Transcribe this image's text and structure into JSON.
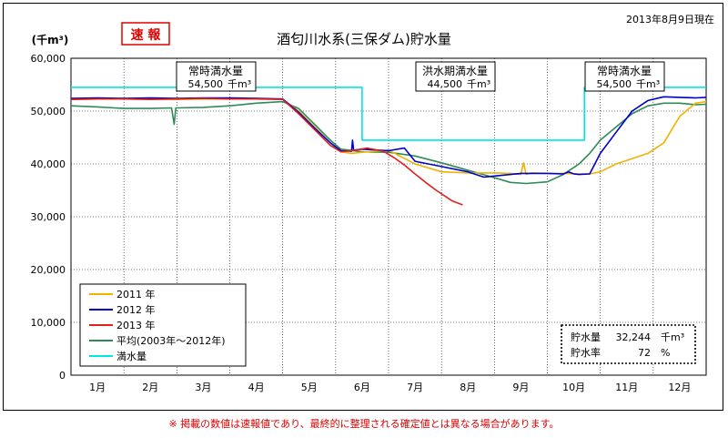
{
  "chart_data": {
    "type": "line",
    "title": "酒匂川水系(三保ダム)貯水量",
    "badge": "速 報",
    "as_of": "2013年8月9日現在",
    "y_unit": "(千m³)",
    "ylim": [
      0,
      60000
    ],
    "y_ticks": [
      "0",
      "10,000",
      "20,000",
      "30,000",
      "40,000",
      "50,000",
      "60,000"
    ],
    "y_tick_values": [
      0,
      10000,
      20000,
      30000,
      40000,
      50000,
      60000
    ],
    "xlim": [
      0,
      12
    ],
    "x_labels": [
      "1月",
      "2月",
      "3月",
      "4月",
      "5月",
      "6月",
      "7月",
      "8月",
      "9月",
      "10月",
      "11月",
      "12月"
    ],
    "grid": true,
    "series": [
      {
        "name": "2011 年",
        "color": "#f0b400",
        "x": [
          0,
          0.5,
          1,
          1.5,
          2,
          2.5,
          3,
          3.5,
          4,
          4.3,
          4.6,
          4.9,
          5.1,
          5.3,
          5.6,
          6,
          6.5,
          7,
          7.5,
          8,
          8.3,
          8.5,
          8.55,
          8.6,
          8.7,
          9,
          9.3,
          9.6,
          9.8,
          10,
          10.3,
          10.6,
          10.9,
          11.2,
          11.5,
          11.8,
          12
        ],
        "values": [
          52200,
          52300,
          52400,
          52300,
          52200,
          52300,
          52300,
          52400,
          52200,
          50000,
          47000,
          44000,
          42300,
          42000,
          42300,
          42600,
          40000,
          38500,
          38300,
          38300,
          38200,
          38000,
          40200,
          38000,
          38300,
          38200,
          38200,
          38100,
          38100,
          38500,
          40000,
          41000,
          42000,
          44000,
          49000,
          51500,
          51800
        ]
      },
      {
        "name": "2012 年",
        "color": "#0000cc",
        "x": [
          0,
          0.5,
          1,
          1.5,
          2,
          2.5,
          3,
          3.5,
          4,
          4.3,
          4.6,
          4.9,
          5.1,
          5.3,
          5.32,
          5.34,
          5.5,
          6,
          6.3,
          6.5,
          7,
          7.5,
          7.8,
          8,
          8.5,
          9,
          9.3,
          9.4,
          9.5,
          9.6,
          9.8,
          10,
          10.3,
          10.6,
          10.9,
          11.2,
          11.5,
          11.8,
          12
        ],
        "values": [
          52400,
          52500,
          52400,
          52500,
          52400,
          52500,
          52500,
          52400,
          52300,
          49800,
          46800,
          44000,
          42500,
          42400,
          44500,
          42600,
          42800,
          42500,
          43000,
          40500,
          39500,
          38500,
          37500,
          37700,
          38200,
          38200,
          38100,
          38500,
          38100,
          38000,
          38100,
          42000,
          46000,
          50000,
          52000,
          52700,
          52600,
          52500,
          52600
        ]
      },
      {
        "name": "2013 年",
        "color": "#e02020",
        "x": [
          0,
          0.5,
          1,
          1.5,
          2,
          2.5,
          3,
          3.5,
          4,
          4.3,
          4.6,
          4.9,
          5.1,
          5.3,
          5.6,
          5.9,
          6.1,
          6.3,
          6.5,
          6.7,
          6.9,
          7.05,
          7.2,
          7.4
        ],
        "values": [
          52200,
          52300,
          52300,
          52200,
          52300,
          52400,
          52300,
          52300,
          52200,
          49500,
          46500,
          43500,
          42300,
          42500,
          43000,
          42400,
          41200,
          39800,
          38100,
          36500,
          35000,
          34000,
          33000,
          32244
        ]
      },
      {
        "name": "平均(2003年〜2012年)",
        "color": "#2e8b57",
        "x": [
          0,
          0.5,
          1,
          1.5,
          1.9,
          1.95,
          1.98,
          2,
          2.5,
          3,
          3.5,
          4,
          4.3,
          4.6,
          4.9,
          5.1,
          5.5,
          6,
          6.5,
          7,
          7.5,
          8,
          8.3,
          8.6,
          9,
          9.3,
          9.6,
          9.8,
          10,
          10.3,
          10.6,
          10.9,
          11.2,
          11.5,
          11.8,
          12
        ],
        "values": [
          51000,
          50800,
          50500,
          50500,
          50600,
          47500,
          50600,
          50600,
          50700,
          51000,
          51500,
          51800,
          50500,
          47500,
          44500,
          42800,
          42300,
          42200,
          41500,
          40200,
          38800,
          37400,
          36500,
          36300,
          36600,
          38000,
          40000,
          42000,
          44500,
          47000,
          49500,
          51000,
          51500,
          51500,
          51200,
          51300
        ]
      },
      {
        "name": "満水量",
        "color": "#00e5e5",
        "x": [
          0,
          5.5,
          5.5,
          9.7,
          9.7,
          12
        ],
        "values": [
          54500,
          54500,
          44500,
          44500,
          54500,
          54500
        ]
      }
    ],
    "annotations": [
      {
        "title": "常時満水量",
        "value": "54,500",
        "unit": "千m³"
      },
      {
        "title": "洪水期満水量",
        "value": "44,500",
        "unit": "千m³"
      },
      {
        "title": "常時満水量",
        "value": "54,500",
        "unit": "千m³"
      }
    ],
    "stats": {
      "storage_label": "貯水量",
      "storage_value": "32,244",
      "storage_unit": "千m³",
      "rate_label": "貯水率",
      "rate_value": "72",
      "rate_unit": "%"
    }
  },
  "note": "※ 掲載の数値は速報値であり、最終的に整理される確定値とは異なる場合があります。"
}
